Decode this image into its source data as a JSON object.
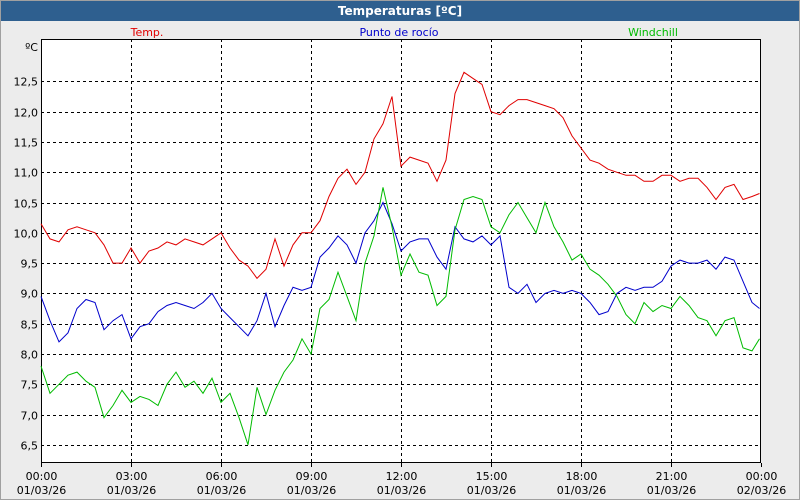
{
  "window": {
    "title": "Temperaturas [ºC]"
  },
  "chart_data": {
    "type": "line",
    "title": "Temperaturas [ºC]",
    "ylabel": "ºC",
    "ylim": [
      6.2,
      13.2
    ],
    "xlim": [
      0,
      24
    ],
    "grid": true,
    "legend_position": "top",
    "y_ticks": [
      6.5,
      7.0,
      7.5,
      8.0,
      8.5,
      9.0,
      9.5,
      10.0,
      10.5,
      11.0,
      11.5,
      12.0,
      12.5
    ],
    "y_tick_labels": [
      "6,5",
      "7,0",
      "7,5",
      "8,0",
      "8,5",
      "9,0",
      "9,5",
      "10,0",
      "10,5",
      "11,0",
      "11,5",
      "12,0",
      "12,5"
    ],
    "x_ticks": [
      {
        "hour": 0,
        "time": "00:00",
        "date": "01/03/26"
      },
      {
        "hour": 3,
        "time": "03:00",
        "date": "01/03/26"
      },
      {
        "hour": 6,
        "time": "06:00",
        "date": "01/03/26"
      },
      {
        "hour": 9,
        "time": "09:00",
        "date": "01/03/26"
      },
      {
        "hour": 12,
        "time": "12:00",
        "date": "01/03/26"
      },
      {
        "hour": 15,
        "time": "15:00",
        "date": "01/03/26"
      },
      {
        "hour": 18,
        "time": "18:00",
        "date": "01/03/26"
      },
      {
        "hour": 21,
        "time": "21:00",
        "date": "01/03/26"
      },
      {
        "hour": 24,
        "time": "00:00",
        "date": "02/03/26"
      }
    ],
    "series": [
      {
        "name": "Temp.",
        "color": "#e00000",
        "points": [
          [
            0.0,
            10.15
          ],
          [
            0.3,
            9.9
          ],
          [
            0.6,
            9.85
          ],
          [
            0.9,
            10.05
          ],
          [
            1.2,
            10.1
          ],
          [
            1.5,
            10.05
          ],
          [
            1.8,
            10.0
          ],
          [
            2.1,
            9.8
          ],
          [
            2.4,
            9.5
          ],
          [
            2.7,
            9.5
          ],
          [
            3.0,
            9.75
          ],
          [
            3.3,
            9.5
          ],
          [
            3.6,
            9.7
          ],
          [
            3.9,
            9.75
          ],
          [
            4.2,
            9.85
          ],
          [
            4.5,
            9.8
          ],
          [
            4.8,
            9.9
          ],
          [
            5.1,
            9.85
          ],
          [
            5.4,
            9.8
          ],
          [
            5.7,
            9.9
          ],
          [
            6.0,
            10.0
          ],
          [
            6.3,
            9.75
          ],
          [
            6.6,
            9.55
          ],
          [
            6.9,
            9.45
          ],
          [
            7.2,
            9.25
          ],
          [
            7.5,
            9.4
          ],
          [
            7.8,
            9.9
          ],
          [
            8.1,
            9.45
          ],
          [
            8.4,
            9.8
          ],
          [
            8.7,
            10.0
          ],
          [
            9.0,
            10.0
          ],
          [
            9.3,
            10.2
          ],
          [
            9.6,
            10.6
          ],
          [
            9.9,
            10.9
          ],
          [
            10.2,
            11.05
          ],
          [
            10.5,
            10.8
          ],
          [
            10.8,
            11.0
          ],
          [
            11.1,
            11.55
          ],
          [
            11.4,
            11.8
          ],
          [
            11.7,
            12.25
          ],
          [
            12.0,
            11.1
          ],
          [
            12.3,
            11.25
          ],
          [
            12.6,
            11.2
          ],
          [
            12.9,
            11.15
          ],
          [
            13.2,
            10.85
          ],
          [
            13.5,
            11.2
          ],
          [
            13.8,
            12.3
          ],
          [
            14.1,
            12.65
          ],
          [
            14.4,
            12.55
          ],
          [
            14.7,
            12.45
          ],
          [
            15.0,
            12.0
          ],
          [
            15.3,
            11.95
          ],
          [
            15.6,
            12.1
          ],
          [
            15.9,
            12.2
          ],
          [
            16.2,
            12.2
          ],
          [
            16.5,
            12.15
          ],
          [
            16.8,
            12.1
          ],
          [
            17.1,
            12.05
          ],
          [
            17.4,
            11.9
          ],
          [
            17.7,
            11.6
          ],
          [
            18.0,
            11.4
          ],
          [
            18.3,
            11.2
          ],
          [
            18.6,
            11.15
          ],
          [
            18.9,
            11.05
          ],
          [
            19.2,
            11.0
          ],
          [
            19.5,
            10.95
          ],
          [
            19.8,
            10.95
          ],
          [
            20.1,
            10.85
          ],
          [
            20.4,
            10.85
          ],
          [
            20.7,
            10.95
          ],
          [
            21.0,
            10.95
          ],
          [
            21.3,
            10.85
          ],
          [
            21.6,
            10.9
          ],
          [
            21.9,
            10.9
          ],
          [
            22.2,
            10.75
          ],
          [
            22.5,
            10.55
          ],
          [
            22.8,
            10.75
          ],
          [
            23.1,
            10.8
          ],
          [
            23.4,
            10.55
          ],
          [
            23.7,
            10.6
          ],
          [
            23.95,
            10.65
          ]
        ]
      },
      {
        "name": "Punto de rocío",
        "color": "#0000cc",
        "points": [
          [
            0.0,
            8.95
          ],
          [
            0.3,
            8.55
          ],
          [
            0.6,
            8.2
          ],
          [
            0.9,
            8.35
          ],
          [
            1.2,
            8.75
          ],
          [
            1.5,
            8.9
          ],
          [
            1.8,
            8.85
          ],
          [
            2.1,
            8.4
          ],
          [
            2.4,
            8.55
          ],
          [
            2.7,
            8.65
          ],
          [
            3.0,
            8.25
          ],
          [
            3.3,
            8.45
          ],
          [
            3.6,
            8.5
          ],
          [
            3.9,
            8.7
          ],
          [
            4.2,
            8.8
          ],
          [
            4.5,
            8.85
          ],
          [
            4.8,
            8.8
          ],
          [
            5.1,
            8.75
          ],
          [
            5.4,
            8.85
          ],
          [
            5.7,
            9.0
          ],
          [
            6.0,
            8.75
          ],
          [
            6.3,
            8.6
          ],
          [
            6.6,
            8.45
          ],
          [
            6.9,
            8.3
          ],
          [
            7.2,
            8.55
          ],
          [
            7.5,
            9.0
          ],
          [
            7.8,
            8.45
          ],
          [
            8.1,
            8.8
          ],
          [
            8.4,
            9.1
          ],
          [
            8.7,
            9.05
          ],
          [
            9.0,
            9.1
          ],
          [
            9.3,
            9.6
          ],
          [
            9.6,
            9.75
          ],
          [
            9.9,
            9.95
          ],
          [
            10.2,
            9.8
          ],
          [
            10.5,
            9.5
          ],
          [
            10.8,
            10.0
          ],
          [
            11.1,
            10.2
          ],
          [
            11.4,
            10.5
          ],
          [
            11.7,
            10.15
          ],
          [
            12.0,
            9.7
          ],
          [
            12.3,
            9.85
          ],
          [
            12.6,
            9.9
          ],
          [
            12.9,
            9.9
          ],
          [
            13.2,
            9.6
          ],
          [
            13.5,
            9.4
          ],
          [
            13.8,
            10.1
          ],
          [
            14.1,
            9.9
          ],
          [
            14.4,
            9.85
          ],
          [
            14.7,
            9.95
          ],
          [
            15.0,
            9.8
          ],
          [
            15.3,
            9.95
          ],
          [
            15.6,
            9.1
          ],
          [
            15.9,
            9.0
          ],
          [
            16.2,
            9.15
          ],
          [
            16.5,
            8.85
          ],
          [
            16.8,
            9.0
          ],
          [
            17.1,
            9.05
          ],
          [
            17.4,
            9.0
          ],
          [
            17.7,
            9.05
          ],
          [
            18.0,
            9.0
          ],
          [
            18.3,
            8.85
          ],
          [
            18.6,
            8.65
          ],
          [
            18.9,
            8.7
          ],
          [
            19.2,
            9.0
          ],
          [
            19.5,
            9.1
          ],
          [
            19.8,
            9.05
          ],
          [
            20.1,
            9.1
          ],
          [
            20.4,
            9.1
          ],
          [
            20.7,
            9.2
          ],
          [
            21.0,
            9.45
          ],
          [
            21.3,
            9.55
          ],
          [
            21.6,
            9.5
          ],
          [
            21.9,
            9.5
          ],
          [
            22.2,
            9.55
          ],
          [
            22.5,
            9.4
          ],
          [
            22.8,
            9.6
          ],
          [
            23.1,
            9.55
          ],
          [
            23.4,
            9.2
          ],
          [
            23.7,
            8.85
          ],
          [
            23.95,
            8.75
          ]
        ]
      },
      {
        "name": "Windchill",
        "color": "#00bb00",
        "points": [
          [
            0.0,
            7.8
          ],
          [
            0.3,
            7.35
          ],
          [
            0.6,
            7.5
          ],
          [
            0.9,
            7.65
          ],
          [
            1.2,
            7.7
          ],
          [
            1.5,
            7.55
          ],
          [
            1.8,
            7.45
          ],
          [
            2.1,
            6.95
          ],
          [
            2.4,
            7.15
          ],
          [
            2.7,
            7.4
          ],
          [
            3.0,
            7.2
          ],
          [
            3.3,
            7.3
          ],
          [
            3.6,
            7.25
          ],
          [
            3.9,
            7.15
          ],
          [
            4.2,
            7.5
          ],
          [
            4.5,
            7.7
          ],
          [
            4.8,
            7.45
          ],
          [
            5.1,
            7.55
          ],
          [
            5.4,
            7.35
          ],
          [
            5.7,
            7.6
          ],
          [
            6.0,
            7.2
          ],
          [
            6.3,
            7.35
          ],
          [
            6.6,
            6.95
          ],
          [
            6.9,
            6.5
          ],
          [
            7.2,
            7.45
          ],
          [
            7.5,
            7.0
          ],
          [
            7.8,
            7.4
          ],
          [
            8.1,
            7.7
          ],
          [
            8.4,
            7.9
          ],
          [
            8.7,
            8.25
          ],
          [
            9.0,
            8.0
          ],
          [
            9.3,
            8.75
          ],
          [
            9.6,
            8.9
          ],
          [
            9.9,
            9.35
          ],
          [
            10.2,
            8.95
          ],
          [
            10.5,
            8.55
          ],
          [
            10.8,
            9.5
          ],
          [
            11.1,
            9.95
          ],
          [
            11.4,
            10.75
          ],
          [
            11.7,
            10.1
          ],
          [
            12.0,
            9.3
          ],
          [
            12.3,
            9.65
          ],
          [
            12.6,
            9.35
          ],
          [
            12.9,
            9.3
          ],
          [
            13.2,
            8.8
          ],
          [
            13.5,
            8.95
          ],
          [
            13.8,
            10.05
          ],
          [
            14.1,
            10.55
          ],
          [
            14.4,
            10.6
          ],
          [
            14.7,
            10.55
          ],
          [
            15.0,
            10.1
          ],
          [
            15.3,
            10.0
          ],
          [
            15.6,
            10.3
          ],
          [
            15.9,
            10.5
          ],
          [
            16.2,
            10.25
          ],
          [
            16.5,
            10.0
          ],
          [
            16.8,
            10.5
          ],
          [
            17.1,
            10.1
          ],
          [
            17.4,
            9.85
          ],
          [
            17.7,
            9.55
          ],
          [
            18.0,
            9.65
          ],
          [
            18.3,
            9.4
          ],
          [
            18.6,
            9.3
          ],
          [
            18.9,
            9.15
          ],
          [
            19.2,
            8.95
          ],
          [
            19.5,
            8.65
          ],
          [
            19.8,
            8.5
          ],
          [
            20.1,
            8.85
          ],
          [
            20.4,
            8.7
          ],
          [
            20.7,
            8.8
          ],
          [
            21.0,
            8.75
          ],
          [
            21.3,
            8.95
          ],
          [
            21.6,
            8.8
          ],
          [
            21.9,
            8.6
          ],
          [
            22.2,
            8.55
          ],
          [
            22.5,
            8.3
          ],
          [
            22.8,
            8.55
          ],
          [
            23.1,
            8.6
          ],
          [
            23.4,
            8.1
          ],
          [
            23.7,
            8.05
          ],
          [
            23.95,
            8.25
          ]
        ]
      }
    ]
  }
}
